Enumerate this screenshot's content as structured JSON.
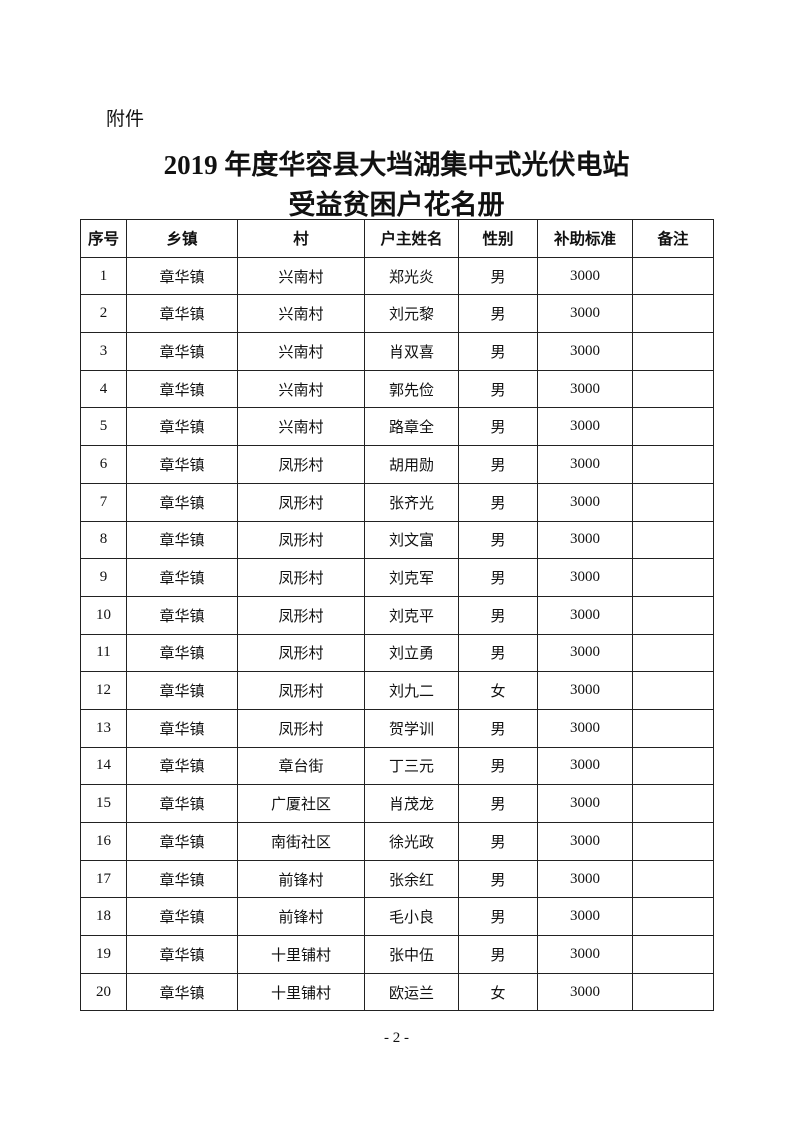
{
  "attachment_label": "附件",
  "title_line1": "2019 年度华容县大垱湖集中式光伏电站",
  "title_line2": "受益贫困户花名册",
  "table": {
    "headers": [
      "序号",
      "乡镇",
      "村",
      "户主姓名",
      "性别",
      "补助标准",
      "备注"
    ],
    "rows": [
      [
        "1",
        "章华镇",
        "兴南村",
        "郑光炎",
        "男",
        "3000",
        ""
      ],
      [
        "2",
        "章华镇",
        "兴南村",
        "刘元黎",
        "男",
        "3000",
        ""
      ],
      [
        "3",
        "章华镇",
        "兴南村",
        "肖双喜",
        "男",
        "3000",
        ""
      ],
      [
        "4",
        "章华镇",
        "兴南村",
        "郭先俭",
        "男",
        "3000",
        ""
      ],
      [
        "5",
        "章华镇",
        "兴南村",
        "路章全",
        "男",
        "3000",
        ""
      ],
      [
        "6",
        "章华镇",
        "凤形村",
        "胡用勋",
        "男",
        "3000",
        ""
      ],
      [
        "7",
        "章华镇",
        "凤形村",
        "张齐光",
        "男",
        "3000",
        ""
      ],
      [
        "8",
        "章华镇",
        "凤形村",
        "刘文富",
        "男",
        "3000",
        ""
      ],
      [
        "9",
        "章华镇",
        "凤形村",
        "刘克军",
        "男",
        "3000",
        ""
      ],
      [
        "10",
        "章华镇",
        "凤形村",
        "刘克平",
        "男",
        "3000",
        ""
      ],
      [
        "11",
        "章华镇",
        "凤形村",
        "刘立勇",
        "男",
        "3000",
        ""
      ],
      [
        "12",
        "章华镇",
        "凤形村",
        "刘九二",
        "女",
        "3000",
        ""
      ],
      [
        "13",
        "章华镇",
        "凤形村",
        "贺学训",
        "男",
        "3000",
        ""
      ],
      [
        "14",
        "章华镇",
        "章台街",
        "丁三元",
        "男",
        "3000",
        ""
      ],
      [
        "15",
        "章华镇",
        "广厦社区",
        "肖茂龙",
        "男",
        "3000",
        ""
      ],
      [
        "16",
        "章华镇",
        "南街社区",
        "徐光政",
        "男",
        "3000",
        ""
      ],
      [
        "17",
        "章华镇",
        "前锋村",
        "张余红",
        "男",
        "3000",
        ""
      ],
      [
        "18",
        "章华镇",
        "前锋村",
        "毛小良",
        "男",
        "3000",
        ""
      ],
      [
        "19",
        "章华镇",
        "十里铺村",
        "张中伍",
        "男",
        "3000",
        ""
      ],
      [
        "20",
        "章华镇",
        "十里铺村",
        "欧运兰",
        "女",
        "3000",
        ""
      ]
    ]
  },
  "page_number": "- 2 -"
}
